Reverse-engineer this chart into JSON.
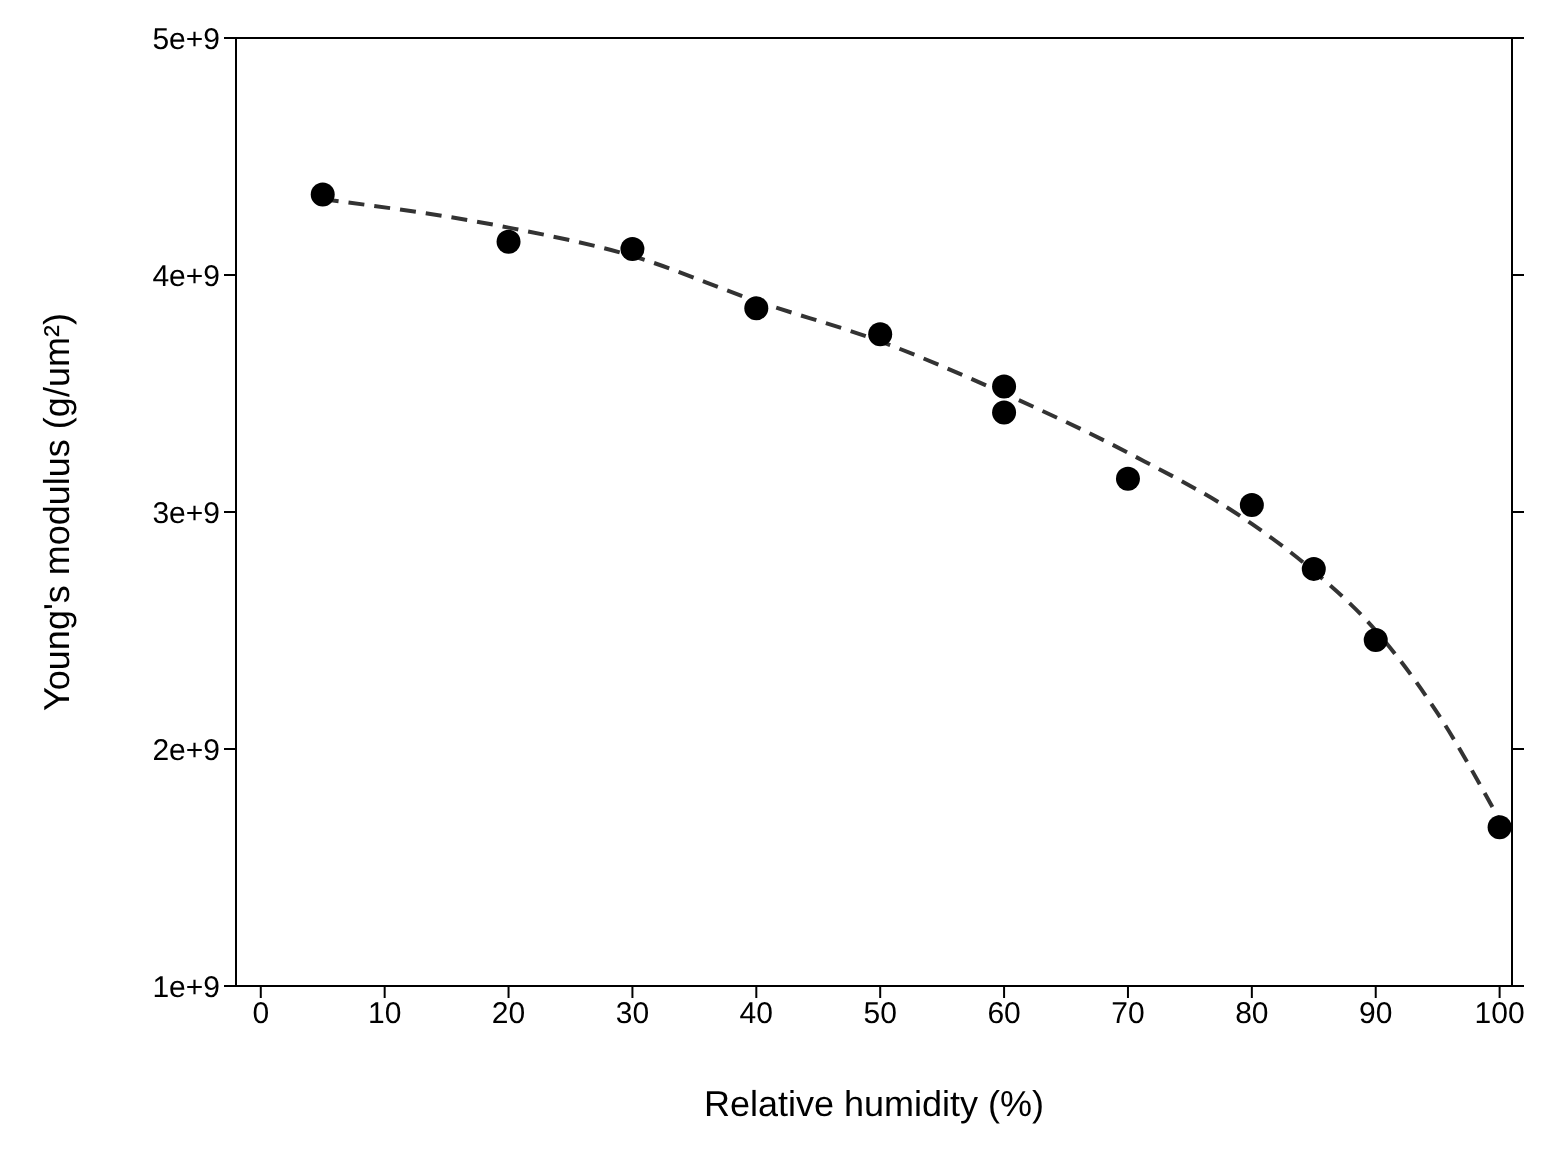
{
  "chart_data": {
    "type": "scatter",
    "xlabel": "Relative humidity (%)",
    "ylabel": "Young's modulus (g/um²)",
    "xlim": [
      -2,
      101
    ],
    "xticks": [
      0,
      10,
      20,
      30,
      40,
      50,
      60,
      70,
      80,
      90,
      100
    ],
    "ylim": [
      1000000000,
      5000000000
    ],
    "yticks": [
      {
        "value": 1000000000,
        "label": "1e+9"
      },
      {
        "value": 2000000000,
        "label": "2e+9"
      },
      {
        "value": 3000000000,
        "label": "3e+9"
      },
      {
        "value": 4000000000,
        "label": "4e+9"
      },
      {
        "value": 5000000000,
        "label": "5e+9"
      }
    ],
    "grid": false,
    "series": [
      {
        "color": "#000000",
        "marker": "circle",
        "x": [
          5,
          20,
          30,
          40,
          50,
          60,
          60,
          70,
          80,
          85,
          90,
          100
        ],
        "values": [
          4340000000,
          4140000000,
          4110000000,
          3860000000,
          3750000000,
          3530000000,
          3420000000,
          3140000000,
          3030000000,
          2760000000,
          2460000000,
          1670000000
        ]
      },
      {
        "type": "line",
        "color": "#333333",
        "line_style": "dashed",
        "marker": "none",
        "x": [
          5,
          20,
          30,
          40,
          50,
          60,
          70,
          80,
          85,
          90,
          95,
          100
        ],
        "values": [
          4320000000,
          4200000000,
          4080000000,
          3890000000,
          3720000000,
          3500000000,
          3250000000,
          2950000000,
          2750000000,
          2500000000,
          2150000000,
          1700000000
        ]
      }
    ]
  }
}
